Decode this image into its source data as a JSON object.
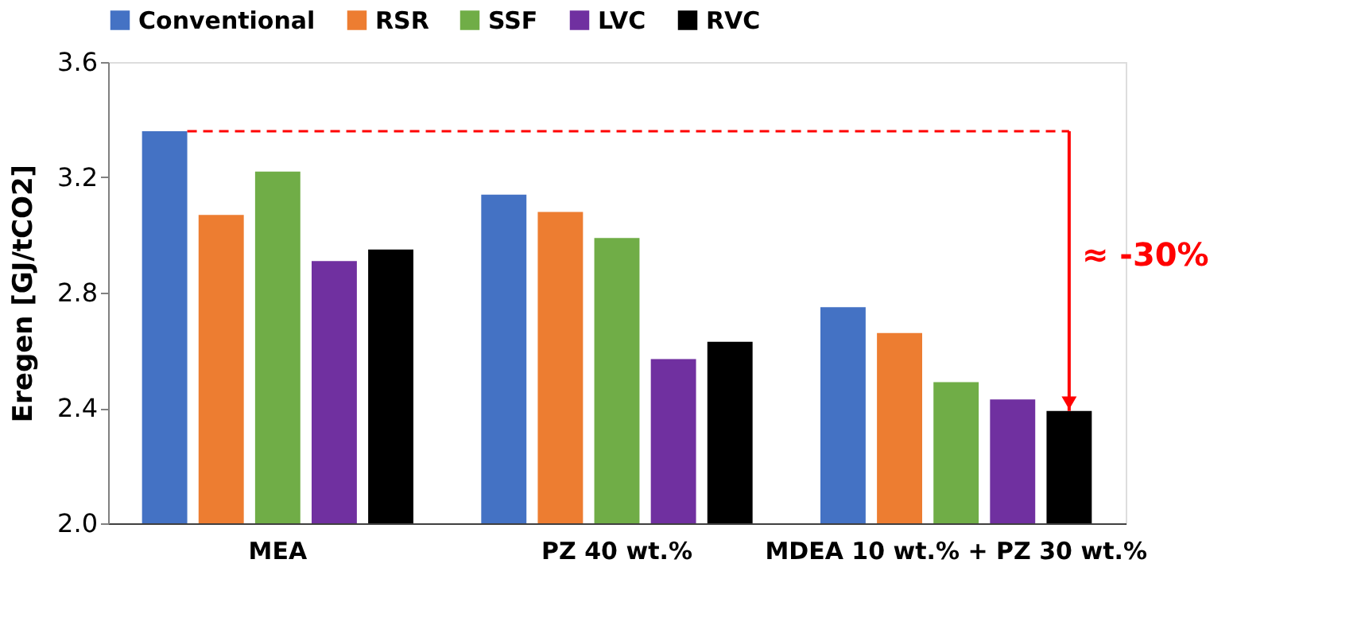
{
  "chart_data": {
    "type": "bar",
    "ylabel": "Eregen [GJ/tCO2]",
    "categories": [
      "MEA",
      "PZ 40 wt.%",
      "MDEA 10 wt.% + PZ 30 wt.%"
    ],
    "series": [
      {
        "name": "Conventional",
        "color": "#4472c4",
        "values": [
          3.36,
          3.14,
          2.75
        ]
      },
      {
        "name": "RSR",
        "color": "#ed7d31",
        "values": [
          3.07,
          3.08,
          2.66
        ]
      },
      {
        "name": "SSF",
        "color": "#70ad47",
        "values": [
          3.22,
          2.99,
          2.49
        ]
      },
      {
        "name": "LVC",
        "color": "#7030a0",
        "values": [
          2.91,
          2.57,
          2.43
        ]
      },
      {
        "name": "RVC",
        "color": "#000000",
        "values": [
          2.95,
          2.63,
          2.39
        ]
      }
    ],
    "ylim": [
      2.0,
      3.6
    ],
    "yticks": [
      {
        "value": 2.0,
        "label": "2.0"
      },
      2.4,
      2.8,
      3.2,
      3.6
    ],
    "ref_lines": [
      {
        "axis": "y",
        "value": 3.36,
        "color": "#ff0000",
        "line_style": "dashed"
      }
    ],
    "annotations": [
      "≈ -30%"
    ],
    "grid": false,
    "legend": "top"
  }
}
